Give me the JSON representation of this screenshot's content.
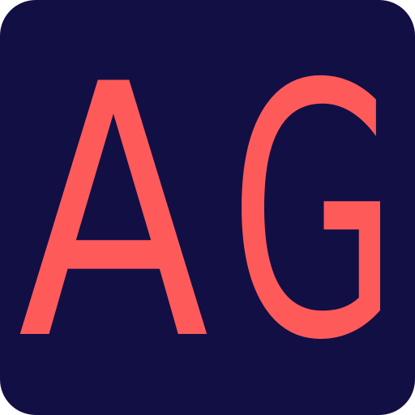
{
  "icon": {
    "label_full": "AG",
    "letter_1": "A",
    "letter_2": "G",
    "background_color": "#120f45",
    "text_color": "#ff5a5a"
  }
}
